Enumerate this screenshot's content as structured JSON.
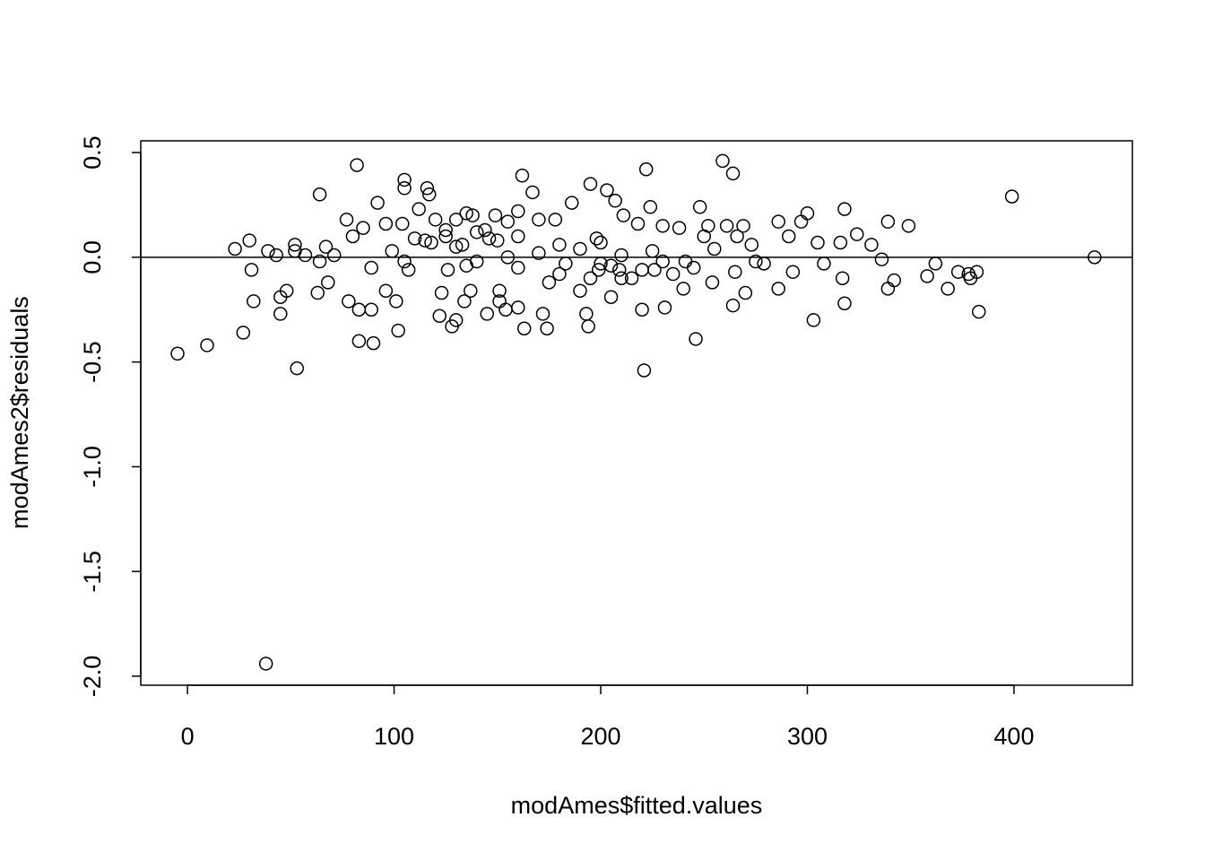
{
  "chart_data": {
    "type": "scatter",
    "x_label": "modAmes$fitted.values",
    "y_label": "modAmes2$residuals",
    "xlim": [
      -22.6,
      457.3
    ],
    "ylim": [
      -2.043,
      0.556
    ],
    "xticks": [
      0,
      100,
      200,
      300,
      400
    ],
    "yticks": [
      {
        "value": -2,
        "label": "-2.0"
      },
      -1.5,
      {
        "value": -1,
        "label": "-1.0"
      },
      -0.5,
      {
        "value": 0,
        "label": "0.0"
      },
      0.5
    ],
    "hline": 0,
    "color": "#000000",
    "x": [
      -4.8,
      9.5,
      23,
      27,
      30,
      31,
      32,
      38,
      39,
      43,
      45,
      45,
      48,
      52,
      52,
      53,
      57,
      64,
      64,
      63,
      67,
      68,
      71,
      77,
      78,
      80,
      82,
      83,
      83,
      85,
      89,
      90,
      89,
      92,
      96,
      96,
      99,
      101,
      102,
      104,
      105,
      105,
      107,
      110,
      112,
      116,
      117,
      118,
      120,
      122,
      123,
      125,
      126,
      128,
      130,
      130,
      133,
      134,
      135,
      137,
      138,
      144,
      145,
      146,
      149,
      151,
      151,
      154,
      155,
      160,
      160,
      162,
      163,
      167,
      170,
      172,
      174,
      178,
      183,
      186,
      190,
      193,
      194,
      195,
      198,
      199,
      203,
      205,
      207,
      209,
      211,
      215,
      218,
      220,
      221,
      222,
      224,
      226,
      230,
      231,
      238,
      240,
      241,
      246,
      248,
      250,
      252,
      254,
      259,
      261,
      264,
      264,
      266,
      269,
      270,
      273,
      279,
      286,
      286,
      291,
      293,
      297,
      300,
      303,
      305,
      308,
      316,
      317,
      318,
      318,
      324,
      331,
      336,
      339,
      339,
      342,
      349,
      358,
      362,
      368,
      373,
      378,
      379,
      382,
      383,
      399,
      439,
      130,
      140,
      150,
      160,
      170,
      180,
      190,
      200,
      210,
      220,
      230,
      140,
      160,
      180,
      200,
      210,
      125,
      135,
      155,
      175,
      195,
      205,
      225,
      235,
      245,
      255,
      265,
      275,
      115,
      105
    ],
    "values": [
      -0.46,
      -0.42,
      0.04,
      -0.36,
      0.08,
      -0.06,
      -0.21,
      -1.94,
      0.03,
      0.01,
      -0.19,
      -0.27,
      -0.16,
      0.06,
      0.03,
      -0.53,
      0.01,
      0.3,
      -0.02,
      -0.17,
      0.05,
      -0.12,
      0.01,
      0.18,
      -0.21,
      0.1,
      0.44,
      -0.25,
      -0.4,
      0.14,
      -0.05,
      -0.41,
      -0.25,
      0.26,
      0.16,
      -0.16,
      0.03,
      -0.21,
      -0.35,
      0.16,
      0.37,
      0.33,
      -0.06,
      0.09,
      0.23,
      0.33,
      0.3,
      0.07,
      0.18,
      -0.28,
      -0.17,
      0.13,
      -0.06,
      -0.33,
      -0.3,
      0.18,
      0.06,
      -0.21,
      0.21,
      -0.16,
      0.2,
      0.13,
      -0.27,
      0.09,
      0.2,
      -0.16,
      -0.21,
      -0.25,
      0.17,
      -0.24,
      0.22,
      0.39,
      -0.34,
      0.31,
      0.18,
      -0.27,
      -0.34,
      0.18,
      -0.03,
      0.26,
      -0.16,
      -0.27,
      -0.33,
      0.35,
      0.09,
      -0.06,
      0.32,
      -0.19,
      0.27,
      -0.06,
      0.2,
      -0.1,
      0.16,
      -0.25,
      -0.54,
      0.42,
      0.24,
      -0.06,
      0.15,
      -0.24,
      0.14,
      -0.15,
      -0.02,
      -0.39,
      0.24,
      0.1,
      0.15,
      -0.12,
      0.46,
      0.15,
      0.4,
      -0.23,
      0.1,
      0.15,
      -0.17,
      0.06,
      -0.03,
      0.17,
      -0.15,
      0.1,
      -0.07,
      0.17,
      0.21,
      -0.3,
      0.07,
      -0.03,
      0.07,
      -0.1,
      0.23,
      -0.22,
      0.11,
      0.06,
      -0.01,
      0.17,
      -0.15,
      -0.11,
      0.15,
      -0.09,
      -0.03,
      -0.15,
      -0.07,
      -0.08,
      -0.1,
      -0.07,
      -0.26,
      0.29,
      0.0,
      0.05,
      -0.02,
      0.08,
      -0.05,
      0.02,
      -0.08,
      0.04,
      -0.03,
      0.01,
      -0.06,
      -0.02,
      0.12,
      0.1,
      0.06,
      0.07,
      -0.1,
      0.1,
      -0.04,
      0.0,
      -0.12,
      -0.1,
      -0.04,
      0.03,
      -0.08,
      -0.05,
      0.04,
      -0.07,
      -0.02,
      0.08,
      -0.02
    ]
  }
}
